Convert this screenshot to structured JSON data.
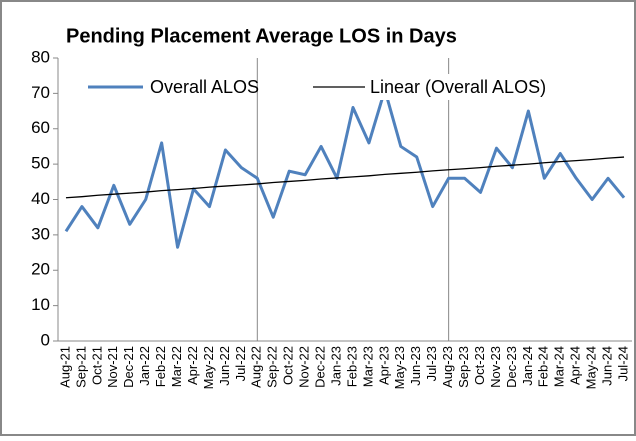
{
  "chart_data": {
    "type": "line",
    "title": "Pending Placement Average LOS in Days",
    "categories": [
      "Aug-21",
      "Sep-21",
      "Oct-21",
      "Nov-21",
      "Dec-21",
      "Jan-22",
      "Feb-22",
      "Mar-22",
      "Apr-22",
      "May-22",
      "Jun-22",
      "Jul-22",
      "Aug-22",
      "Sep-22",
      "Oct-22",
      "Nov-22",
      "Dec-22",
      "Jan-23",
      "Feb-23",
      "Mar-23",
      "Apr-23",
      "May-23",
      "Jun-23",
      "Jul-23",
      "Aug-23",
      "Sep-23",
      "Oct-23",
      "Nov-23",
      "Dec-23",
      "Jan-24",
      "Feb-24",
      "Mar-24",
      "Apr-24",
      "May-24",
      "Jun-24",
      "Jul-24"
    ],
    "series": [
      {
        "name": "Overall ALOS",
        "color": "#4f81bd",
        "width": 3,
        "values": [
          31,
          38,
          32,
          44,
          33,
          40,
          56,
          26.5,
          43,
          38,
          54,
          49,
          46,
          35,
          48,
          47,
          55,
          46,
          66,
          56,
          71,
          55,
          52,
          38,
          46,
          46,
          42,
          54.5,
          49,
          65,
          46,
          53,
          46,
          40,
          46,
          40.5
        ]
      },
      {
        "name": "Linear (Overall ALOS)",
        "color": "#000000",
        "width": 1.3,
        "values": [
          40.5,
          40.8,
          41.2,
          41.5,
          41.8,
          42.1,
          42.5,
          42.8,
          43.1,
          43.5,
          43.8,
          44.1,
          44.4,
          44.8,
          45.1,
          45.4,
          45.8,
          46.1,
          46.4,
          46.7,
          47.1,
          47.4,
          47.7,
          48.1,
          48.4,
          48.7,
          49.0,
          49.4,
          49.7,
          50.0,
          50.4,
          50.7,
          51.0,
          51.3,
          51.7,
          52.0
        ]
      }
    ],
    "ylim": [
      0,
      80
    ],
    "yticks": [
      0,
      10,
      20,
      30,
      40,
      50,
      60,
      70,
      80
    ],
    "grid": false
  }
}
